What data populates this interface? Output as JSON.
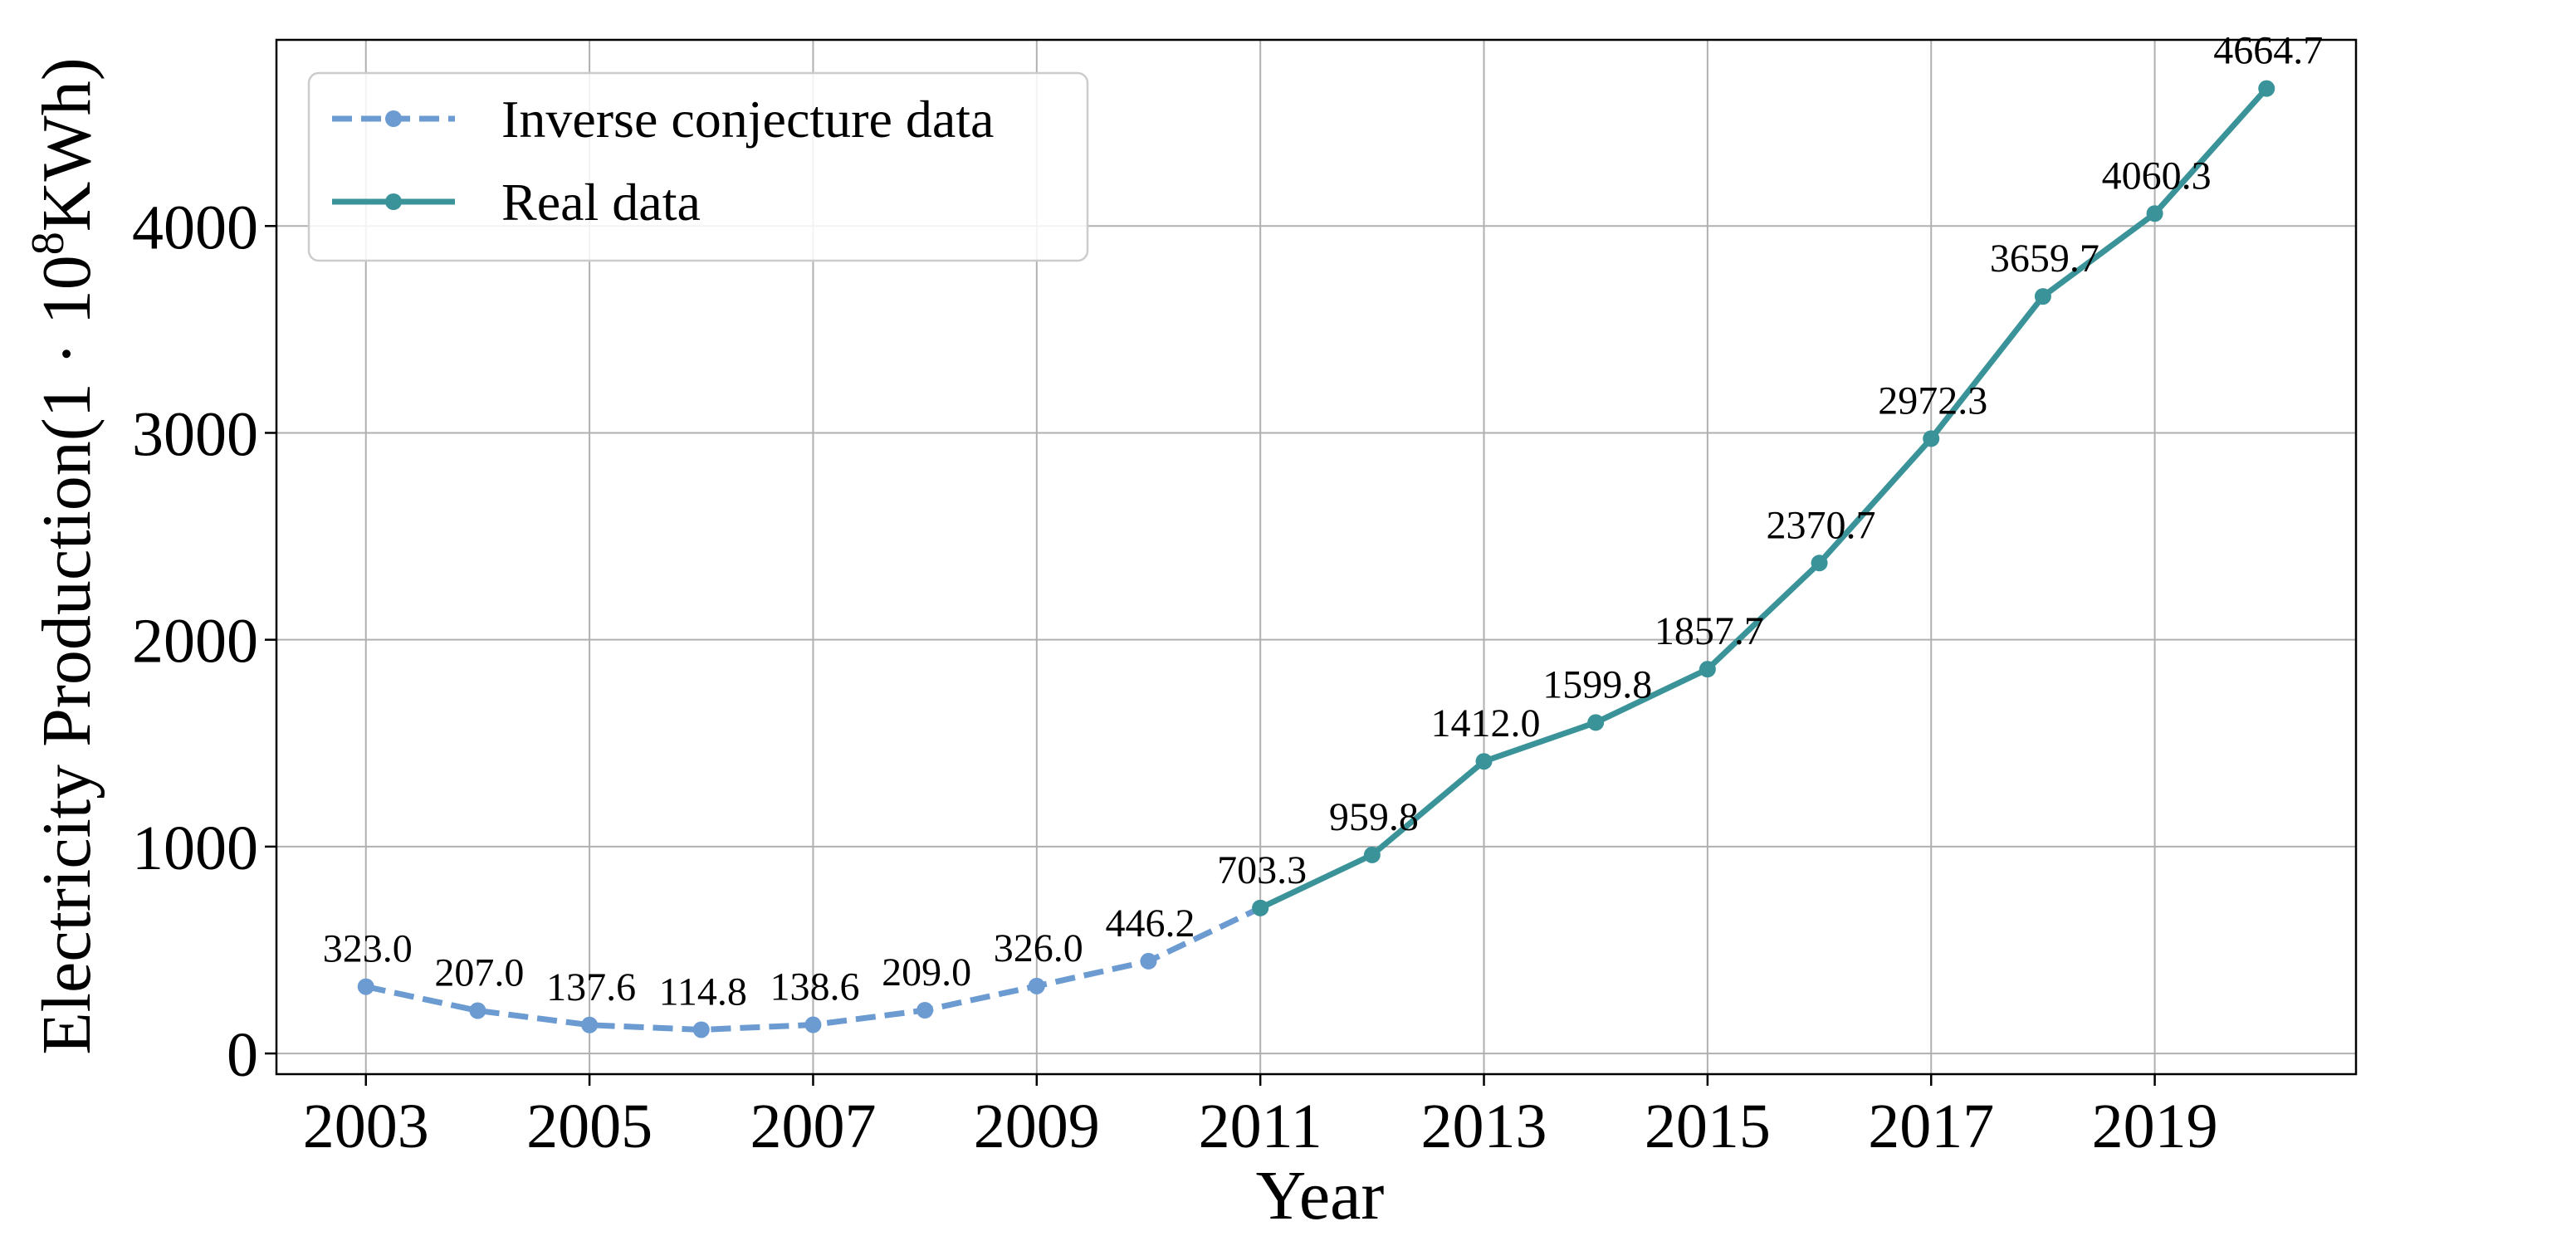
{
  "chart_data": {
    "type": "line",
    "title": "",
    "xlabel": "Year",
    "ylabel": "Electricity Production(1 · 10⁸KWh)",
    "ylabel_parts": {
      "prefix": "Electricity Production(1 · 10",
      "sup": "8",
      "suffix": "KWh)"
    },
    "xlim": [
      2002.2,
      2020.8
    ],
    "ylim": [
      -100,
      4900
    ],
    "xticks": [
      2003,
      2005,
      2007,
      2009,
      2011,
      2013,
      2015,
      2017,
      2019
    ],
    "yticks": [
      0,
      1000,
      2000,
      3000,
      4000
    ],
    "grid": true,
    "legend_position": "top-left",
    "series": [
      {
        "name": "Inverse conjecture data",
        "style": "dashed",
        "color": "#6c9bd2",
        "x": [
          2003,
          2004,
          2005,
          2006,
          2007,
          2008,
          2009,
          2010,
          2011
        ],
        "y": [
          323.0,
          207.0,
          137.6,
          114.8,
          138.6,
          209.0,
          326.0,
          446.2,
          703.3
        ]
      },
      {
        "name": "Real data",
        "style": "solid",
        "color": "#3a9399",
        "x": [
          2011,
          2012,
          2013,
          2014,
          2015,
          2016,
          2017,
          2018,
          2019,
          2020
        ],
        "y": [
          703.3,
          959.8,
          1412.0,
          1599.8,
          1857.7,
          2370.7,
          2972.3,
          3659.7,
          4060.3,
          4664.7
        ]
      }
    ],
    "annotations": [
      {
        "x": 2003,
        "y": 323.0,
        "text": "323.0"
      },
      {
        "x": 2004,
        "y": 207.0,
        "text": "207.0"
      },
      {
        "x": 2005,
        "y": 137.6,
        "text": "137.6"
      },
      {
        "x": 2006,
        "y": 114.8,
        "text": "114.8"
      },
      {
        "x": 2007,
        "y": 138.6,
        "text": "138.6"
      },
      {
        "x": 2008,
        "y": 209.0,
        "text": "209.0"
      },
      {
        "x": 2009,
        "y": 326.0,
        "text": "326.0"
      },
      {
        "x": 2010,
        "y": 446.2,
        "text": "446.2"
      },
      {
        "x": 2011,
        "y": 703.3,
        "text": "703.3"
      },
      {
        "x": 2012,
        "y": 959.8,
        "text": "959.8"
      },
      {
        "x": 2013,
        "y": 1412.0,
        "text": "1412.0"
      },
      {
        "x": 2014,
        "y": 1599.8,
        "text": "1599.8"
      },
      {
        "x": 2015,
        "y": 1857.7,
        "text": "1857.7"
      },
      {
        "x": 2016,
        "y": 2370.7,
        "text": "2370.7"
      },
      {
        "x": 2017,
        "y": 2972.3,
        "text": "2972.3"
      },
      {
        "x": 2018,
        "y": 3659.7,
        "text": "3659.7"
      },
      {
        "x": 2019,
        "y": 4060.3,
        "text": "4060.3"
      },
      {
        "x": 2020,
        "y": 4664.7,
        "text": "4664.7"
      }
    ]
  }
}
